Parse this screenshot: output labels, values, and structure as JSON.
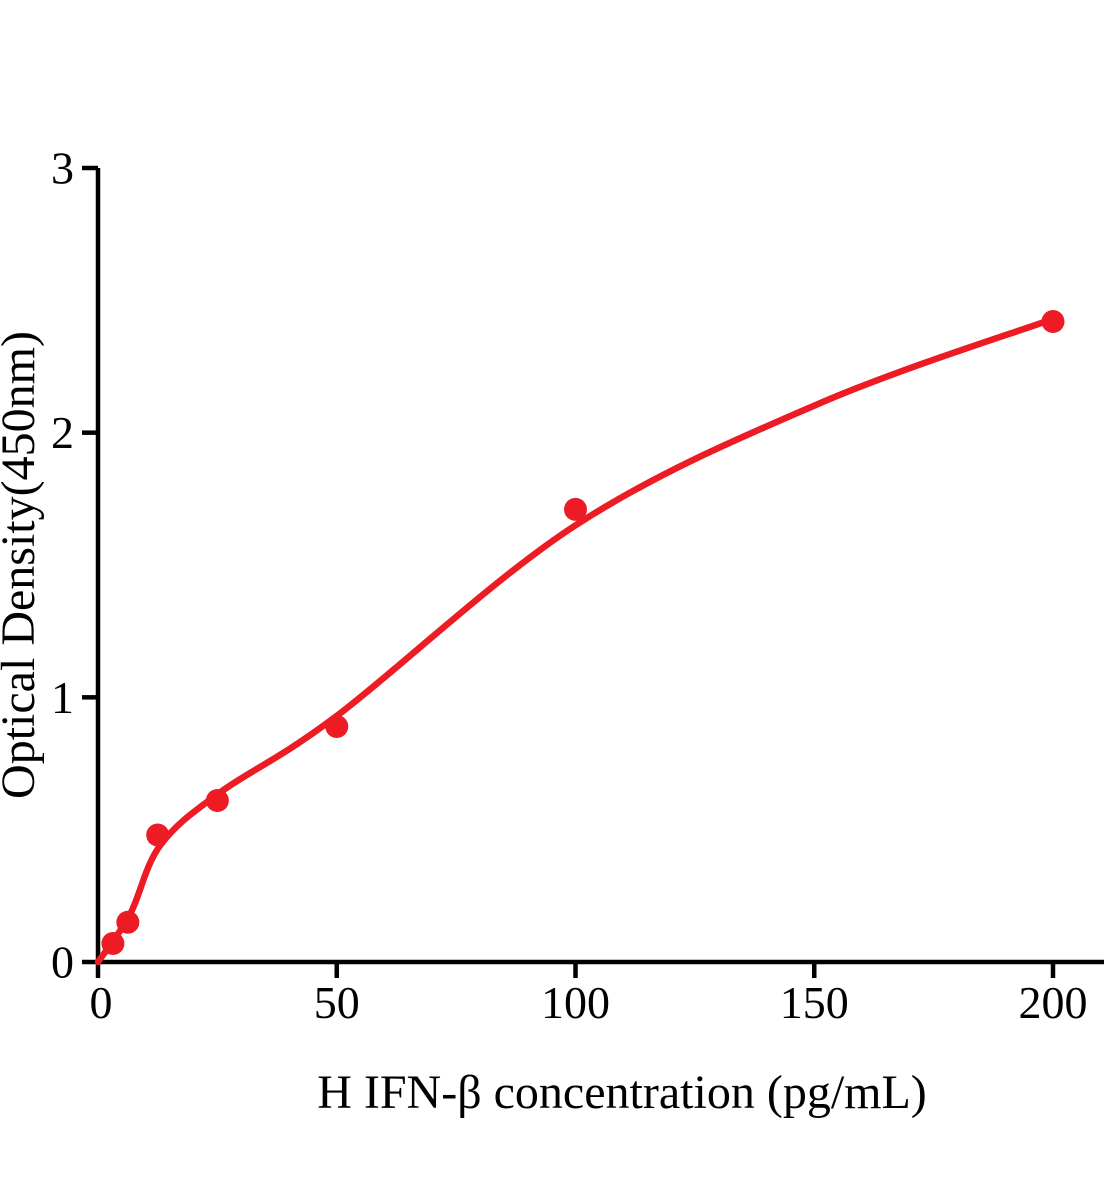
{
  "chart_data": {
    "type": "scatter",
    "title": "",
    "xlabel": "H IFN-β concentration (pg/mL)",
    "ylabel": "Optical Density(450nm)",
    "x_ticks": [
      0,
      50,
      100,
      150,
      200
    ],
    "y_ticks": [
      0,
      1,
      2,
      3
    ],
    "xlim": [
      0,
      210.6
    ],
    "ylim": [
      0,
      3
    ],
    "grid": false,
    "legend": "none",
    "axis_color": "#000000",
    "point_color": "#ed1c24",
    "line_color": "#ed1c24",
    "series": [
      {
        "name": "standard-points",
        "kind": "scatter",
        "points": [
          {
            "x": 3.125,
            "y": 0.07
          },
          {
            "x": 6.25,
            "y": 0.15
          },
          {
            "x": 12.5,
            "y": 0.48
          },
          {
            "x": 25,
            "y": 0.61
          },
          {
            "x": 50,
            "y": 0.89
          },
          {
            "x": 100,
            "y": 1.71
          },
          {
            "x": 200,
            "y": 2.42
          }
        ]
      },
      {
        "name": "fit-curve",
        "kind": "line",
        "points": [
          {
            "x": 0,
            "y": 0.0
          },
          {
            "x": 6.7,
            "y": 0.18
          },
          {
            "x": 13,
            "y": 0.44
          },
          {
            "x": 25.5,
            "y": 0.64
          },
          {
            "x": 50,
            "y": 0.93
          },
          {
            "x": 100,
            "y": 1.65
          },
          {
            "x": 151,
            "y": 2.11
          },
          {
            "x": 200,
            "y": 2.43
          }
        ]
      }
    ]
  }
}
